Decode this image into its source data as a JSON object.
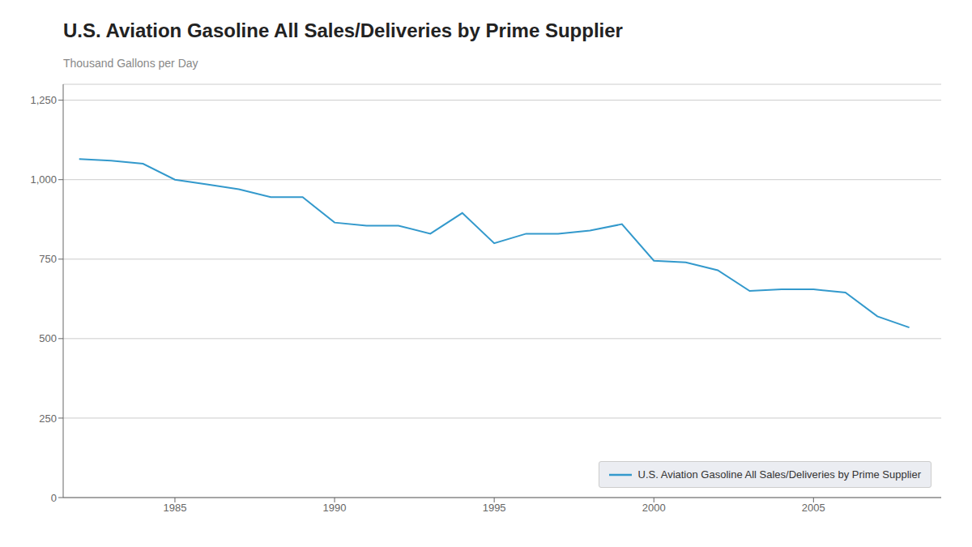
{
  "chart_data": {
    "type": "line",
    "title": "U.S. Aviation Gasoline All Sales/Deliveries by Prime Supplier",
    "ylabel": "Thousand Gallons per Day",
    "x": [
      1982,
      1983,
      1984,
      1985,
      1986,
      1987,
      1988,
      1989,
      1990,
      1991,
      1992,
      1993,
      1994,
      1995,
      1996,
      1997,
      1998,
      1999,
      2000,
      2001,
      2002,
      2003,
      2004,
      2005,
      2006,
      2007,
      2008
    ],
    "series": [
      {
        "name": "U.S. Aviation Gasoline All Sales/Deliveries by Prime Supplier",
        "color": "#3399cc",
        "values": [
          1065,
          1060,
          1050,
          1000,
          985,
          970,
          945,
          945,
          865,
          855,
          855,
          830,
          895,
          800,
          830,
          830,
          840,
          860,
          745,
          740,
          715,
          650,
          655,
          655,
          645,
          570,
          535
        ]
      }
    ],
    "xlim": [
      1981.5,
      2009
    ],
    "xticks": [
      1985,
      1990,
      1995,
      2000,
      2005
    ],
    "ylim": [
      0,
      1300
    ],
    "yticks": [
      0,
      250,
      500,
      750,
      {
        "value": 1000,
        "label": "1,000"
      },
      {
        "value": 1250,
        "label": "1,250"
      }
    ],
    "grid": true,
    "legend": "lower right"
  }
}
